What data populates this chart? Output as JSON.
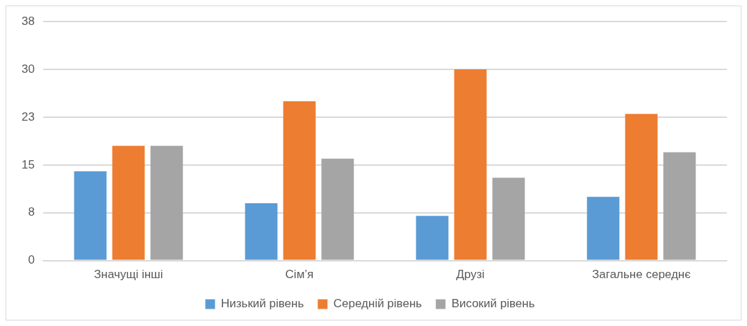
{
  "chart_data": {
    "type": "bar",
    "categories": [
      "Значущі інші",
      "Сім’я",
      "Друзі",
      "Загальне середнє"
    ],
    "series": [
      {
        "name": "Низький рівень",
        "color": "#5b9bd5",
        "values": [
          14,
          9,
          7,
          10
        ]
      },
      {
        "name": "Середній рівень",
        "color": "#ed7d31",
        "values": [
          18,
          25,
          30,
          23
        ]
      },
      {
        "name": "Високий рівень",
        "color": "#a5a5a5",
        "values": [
          18,
          16,
          13,
          17
        ]
      }
    ],
    "ylim": [
      0,
      37.5
    ],
    "yticks": [
      0,
      {
        "value": 7.5,
        "label": "8"
      },
      15,
      {
        "value": 22.5,
        "label": "23"
      },
      30,
      {
        "value": 37.5,
        "label": "38"
      }
    ],
    "grid": "y",
    "legend": "bottom"
  }
}
